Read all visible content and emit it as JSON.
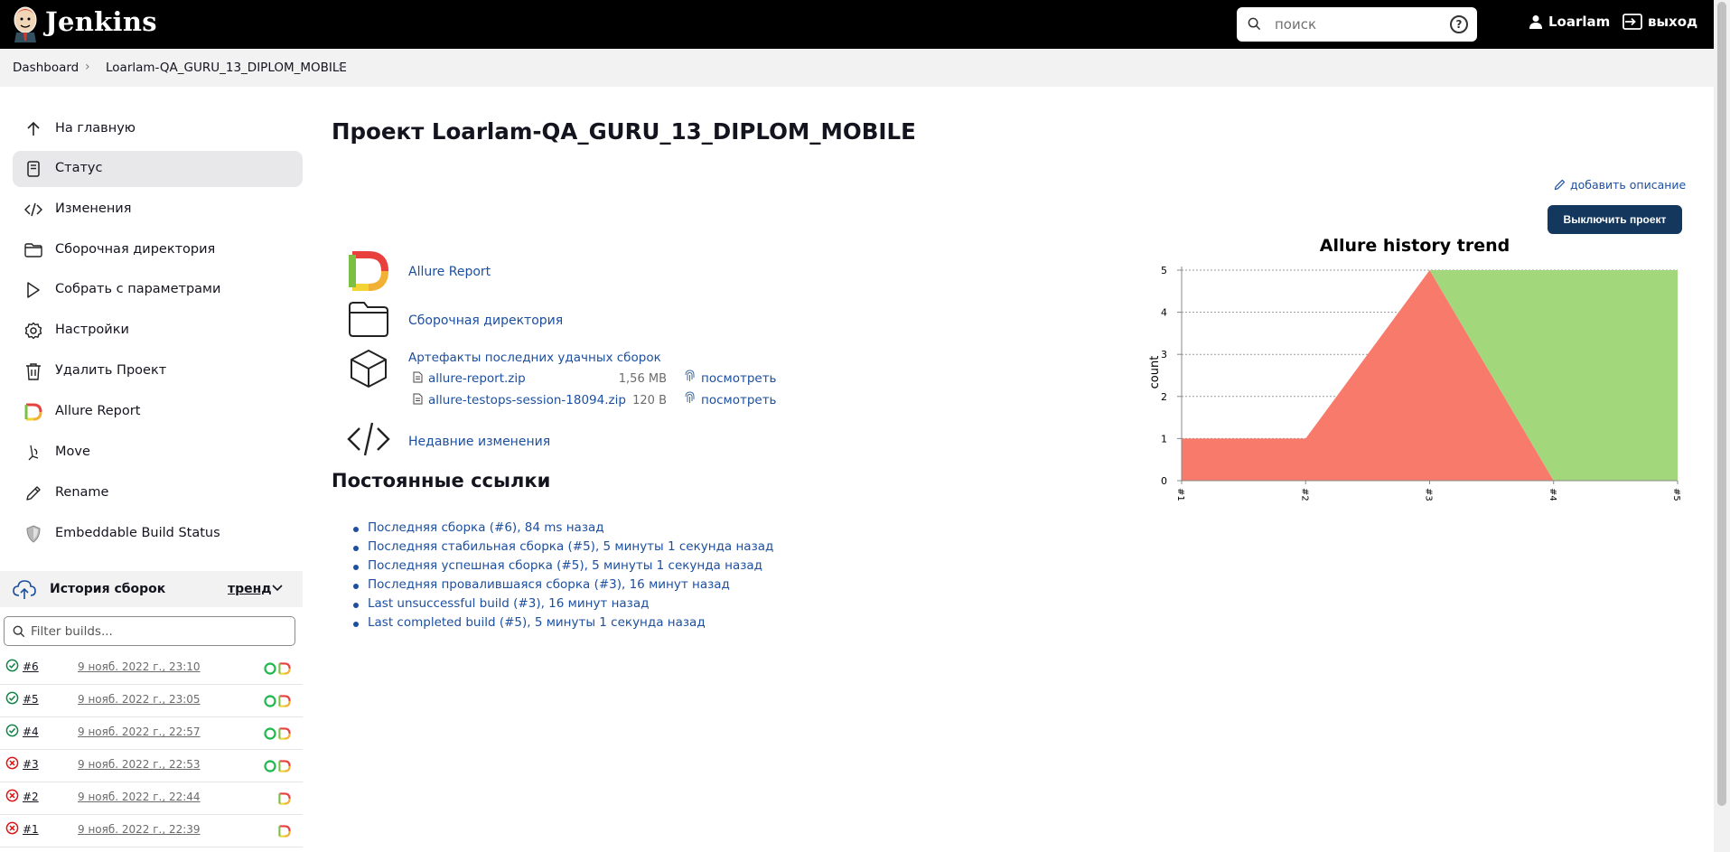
{
  "header": {
    "brand": "Jenkins",
    "search_placeholder": "поиск",
    "user": "Loarlam",
    "logout": "выход"
  },
  "breadcrumbs": [
    "Dashboard",
    "Loarlam-QA_GURU_13_DIPLOM_MOBILE"
  ],
  "sidebar": {
    "items": [
      {
        "label": "На главную",
        "icon": "arrow-up-icon"
      },
      {
        "label": "Статус",
        "icon": "document-icon"
      },
      {
        "label": "Изменения",
        "icon": "code-icon"
      },
      {
        "label": "Сборочная директория",
        "icon": "folder-icon"
      },
      {
        "label": "Собрать с параметрами",
        "icon": "play-icon"
      },
      {
        "label": "Настройки",
        "icon": "gear-icon"
      },
      {
        "label": "Удалить Проект",
        "icon": "trash-icon"
      },
      {
        "label": "Allure Report",
        "icon": "allure-icon"
      },
      {
        "label": "Move",
        "icon": "move-icon"
      },
      {
        "label": "Rename",
        "icon": "pencil-icon"
      },
      {
        "label": "Embeddable Build Status",
        "icon": "shield-icon"
      }
    ]
  },
  "build_history": {
    "title": "История сборок",
    "trend": "тренд",
    "filter_placeholder": "Filter builds...",
    "builds": [
      {
        "num": "#6",
        "date": "9 нояб. 2022 г., 23:10",
        "status": "success"
      },
      {
        "num": "#5",
        "date": "9 нояб. 2022 г., 23:05",
        "status": "success"
      },
      {
        "num": "#4",
        "date": "9 нояб. 2022 г., 22:57",
        "status": "success"
      },
      {
        "num": "#3",
        "date": "9 нояб. 2022 г., 22:53",
        "status": "failed"
      },
      {
        "num": "#2",
        "date": "9 нояб. 2022 г., 22:44",
        "status": "failed"
      },
      {
        "num": "#1",
        "date": "9 нояб. 2022 г., 22:39",
        "status": "failed"
      }
    ]
  },
  "main": {
    "title": "Проект Loarlam-QA_GURU_13_DIPLOM_MOBILE",
    "add_description": "добавить описание",
    "disable_button": "Выключить проект",
    "links": {
      "allure": "Allure Report",
      "workspace": "Сборочная директория",
      "artifacts": "Артефакты последних удачных сборок",
      "recent_changes": "Недавние изменения"
    },
    "artifacts": [
      {
        "name": "allure-report.zip",
        "size": "1,56 MB",
        "view": "посмотреть"
      },
      {
        "name": "allure-testops-session-18094.zip",
        "size": "120 B",
        "view": "посмотреть"
      }
    ],
    "permalinks_title": "Постоянные ссылки",
    "permalinks": [
      "Последняя сборка (#6), 84 ms назад",
      "Последняя стабильная сборка (#5), 5 минуты 1 секунда назад",
      "Последняя успешная сборка (#5), 5 минуты 1 секунда назад",
      "Последняя провалившаяся сборка (#3), 16 минут назад",
      "Last unsuccessful build (#3), 16 минут назад",
      "Last completed build (#5), 5 минуты 1 секунда назад"
    ]
  },
  "chart_data": {
    "type": "area",
    "title": "Allure history trend",
    "ylabel": "count",
    "xlabel": "",
    "categories": [
      "#1",
      "#2",
      "#3",
      "#4",
      "#5"
    ],
    "ylim": [
      0,
      5
    ],
    "yticks": [
      0,
      1,
      2,
      3,
      4,
      5
    ],
    "grid": true,
    "series": [
      {
        "values": [
          1,
          1,
          5,
          0,
          0
        ],
        "color": "#f87a6a"
      },
      {
        "values": [
          0,
          0,
          0,
          5,
          5
        ],
        "color": "#a3d77c"
      }
    ]
  }
}
